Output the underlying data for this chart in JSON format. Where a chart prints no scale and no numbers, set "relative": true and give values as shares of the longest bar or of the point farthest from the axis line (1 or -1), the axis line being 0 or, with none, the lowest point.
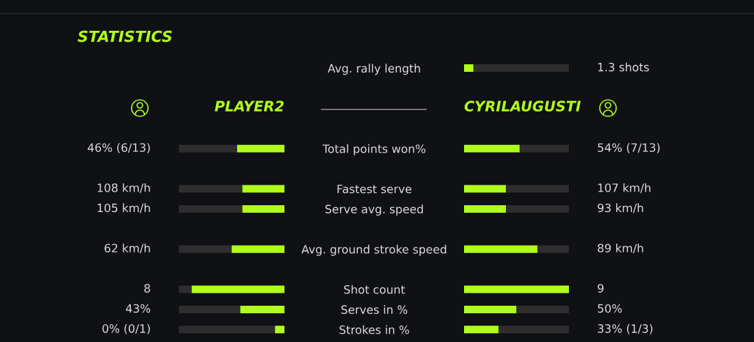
{
  "chart_data": [
    {
      "type": "bar",
      "orientation": "horizontal",
      "relative": true,
      "stacked": true,
      "title": "PLAYER2",
      "tick_labels": "y",
      "annotations": [
        "STATISTICS",
        "46% (6/13)",
        "108 km/h",
        "105 km/h",
        "62 km/h",
        "8",
        "43%",
        "0% (0/1)"
      ],
      "categories": [
        "Avg. rally length",
        null,
        null,
        null,
        "Total points won%",
        null,
        "Fastest serve",
        "Serve avg. speed",
        null,
        "Avg. ground stroke speed",
        null,
        "Shot count",
        "Serves in %",
        "Strokes in %"
      ],
      "series": [
        {
          "color": "#b0ff1a",
          "values": [
            null,
            null,
            null,
            null,
            -0.45,
            null,
            -0.4,
            -0.4,
            null,
            -0.5,
            null,
            -0.88,
            -0.42,
            -0.09
          ]
        },
        {
          "color": "#2f2d2e",
          "values": [
            null,
            null,
            null,
            null,
            -0.55,
            null,
            -0.6,
            -0.6,
            null,
            -0.5,
            null,
            -0.12,
            -0.58,
            -0.91
          ]
        }
      ]
    },
    {
      "type": "bar",
      "orientation": "horizontal",
      "relative": true,
      "stacked": true,
      "title": "CYRILAUGUSTI",
      "tick_labels": false,
      "annotations": [
        "1.3 shots",
        "54% (7/13)",
        "107 km/h",
        "93 km/h",
        "89 km/h",
        "9",
        "50%",
        "33% (1/3)"
      ],
      "categories": [
        null,
        null,
        null,
        null,
        null,
        null,
        null,
        null,
        null,
        null,
        null,
        null,
        null,
        null
      ],
      "series": [
        {
          "color": "#b0ff1a",
          "values": [
            0.09,
            null,
            null,
            null,
            0.53,
            null,
            0.4,
            0.4,
            null,
            0.7,
            null,
            1,
            0.5,
            0.33
          ]
        },
        {
          "color": "#2f2d2e",
          "values": [
            0.91,
            null,
            null,
            null,
            0.47,
            null,
            0.6,
            0.6,
            null,
            0.3,
            null,
            0,
            0.5,
            0.67
          ]
        }
      ]
    }
  ]
}
